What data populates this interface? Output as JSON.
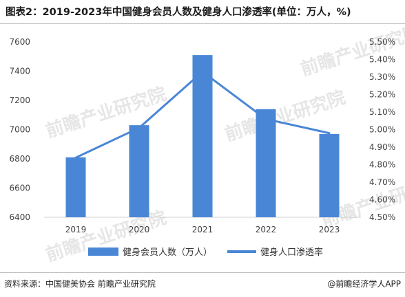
{
  "title": "图表2：2019-2023年中国健身会员人数及健身人口渗透率(单位：万人，%)",
  "source": "资料来源：中国健美协会 前瞻产业研究院",
  "credit": "@前瞻经济学人APP",
  "watermark": "前瞻产业研究院",
  "colors": {
    "bar": "#4a86d6",
    "line": "#4a86d6",
    "axis": "#d0d0d0"
  },
  "chart_data": {
    "type": "bar",
    "categories": [
      "2019",
      "2020",
      "2021",
      "2022",
      "2023"
    ],
    "series": [
      {
        "name": "健身会员人数（万人）",
        "type": "bar",
        "axis": "left",
        "values": [
          6810,
          7030,
          7510,
          7140,
          6970
        ]
      },
      {
        "name": "健身人口渗透率",
        "type": "line",
        "axis": "right",
        "values": [
          4.84,
          5.01,
          5.33,
          5.06,
          4.98
        ]
      }
    ],
    "y_left": {
      "ticks": [
        "6400",
        "6600",
        "6800",
        "7000",
        "7200",
        "7400",
        "7600"
      ],
      "ylim": [
        6400,
        7600
      ]
    },
    "y_right": {
      "ticks": [
        "4.50%",
        "4.60%",
        "4.70%",
        "4.80%",
        "4.90%",
        "5.00%",
        "5.10%",
        "5.20%",
        "5.30%",
        "5.40%",
        "5.50%"
      ],
      "ylim": [
        4.5,
        5.5
      ]
    },
    "legend_position": "bottom"
  }
}
